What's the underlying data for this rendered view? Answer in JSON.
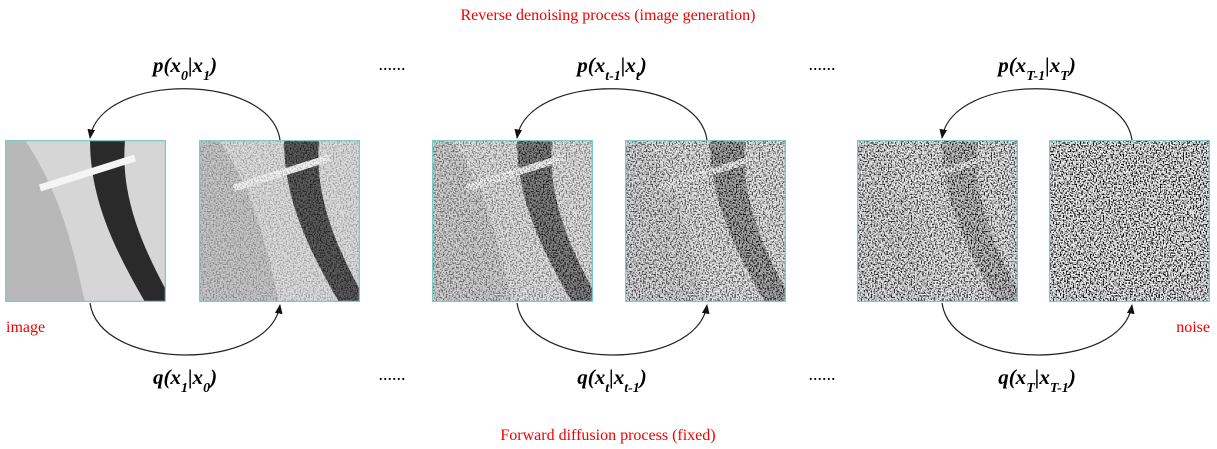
{
  "title_top": "Reverse denoising process (image generation)",
  "title_bottom": "Forward diffusion process (fixed)",
  "label_left": "image",
  "label_right": "noise",
  "ellipses": [
    "......",
    "......",
    "......",
    "......"
  ],
  "reverse": [
    [
      {
        "text": "p(x"
      },
      {
        "sub": "0"
      },
      {
        "text": "|x"
      },
      {
        "sub": "1"
      },
      {
        "text": ")"
      }
    ],
    [
      {
        "text": "p(x"
      },
      {
        "sub": "t-1"
      },
      {
        "text": "|x"
      },
      {
        "sub": "t"
      },
      {
        "text": ")"
      }
    ],
    [
      {
        "text": "p(x"
      },
      {
        "sub": "T-1"
      },
      {
        "text": "|x"
      },
      {
        "sub": "T"
      },
      {
        "text": ")"
      }
    ]
  ],
  "forward": [
    [
      {
        "text": "q(x"
      },
      {
        "sub": "1"
      },
      {
        "text": "|x"
      },
      {
        "sub": "0"
      },
      {
        "text": ")"
      }
    ],
    [
      {
        "text": "q(x"
      },
      {
        "sub": "t"
      },
      {
        "text": "|x"
      },
      {
        "sub": "t-1"
      },
      {
        "text": ")"
      }
    ],
    [
      {
        "text": "q(x"
      },
      {
        "sub": "T"
      },
      {
        "text": "|x"
      },
      {
        "sub": "T-1"
      },
      {
        "text": ")"
      }
    ]
  ]
}
